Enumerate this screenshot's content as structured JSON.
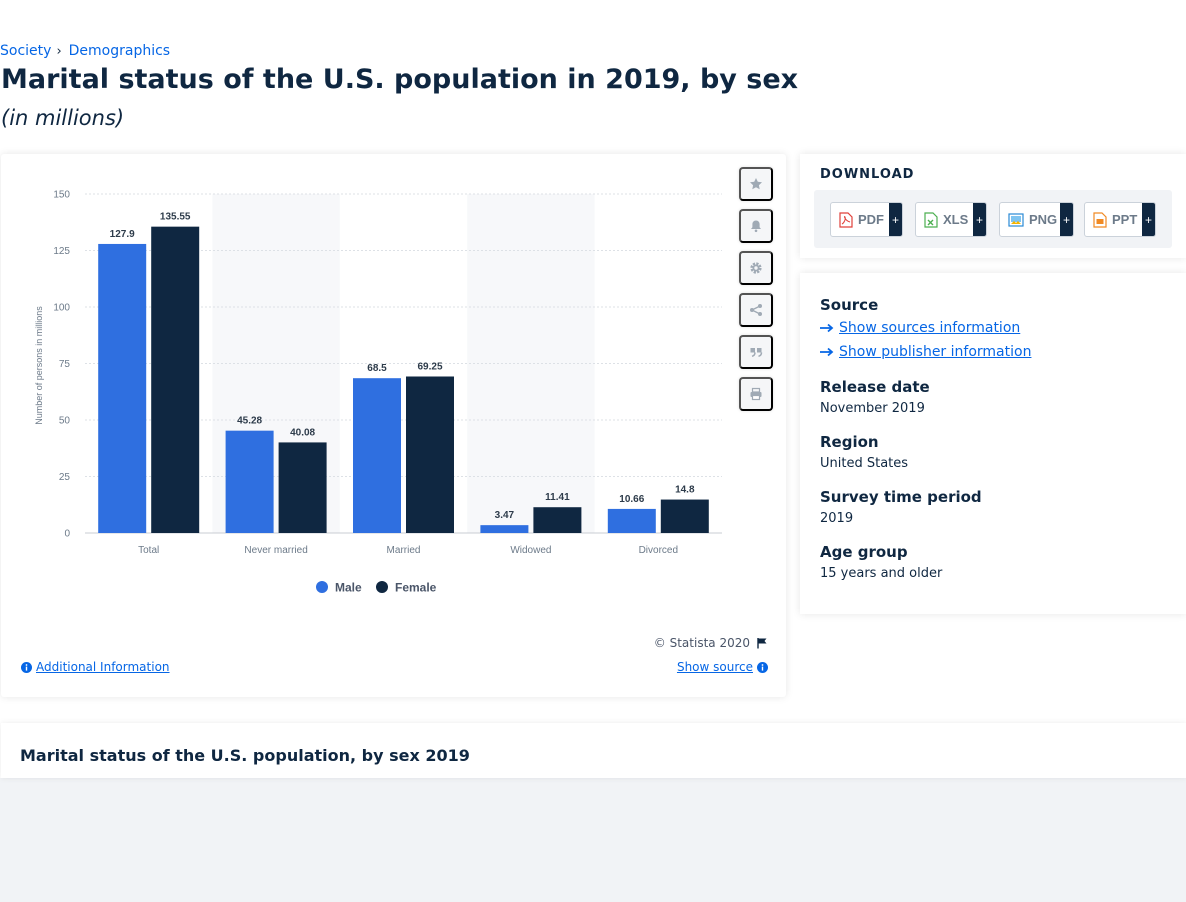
{
  "breadcrumb": {
    "items": [
      "Society",
      "Demographics"
    ],
    "separator": "›"
  },
  "page": {
    "title": "Marital status of the U.S. population in 2019, by sex",
    "subtitle": "(in millions)"
  },
  "chart_data": {
    "type": "bar",
    "categories": [
      "Total",
      "Never married",
      "Married",
      "Widowed",
      "Divorced"
    ],
    "series": [
      {
        "name": "Male",
        "color": "#2f6fe0",
        "values": [
          127.9,
          45.28,
          68.5,
          3.47,
          10.66
        ],
        "labels": [
          "127.9",
          "45.28",
          "68.5",
          "3.47",
          "10.66"
        ]
      },
      {
        "name": "Female",
        "color": "#0f2741",
        "values": [
          135.55,
          40.08,
          69.25,
          11.41,
          14.8
        ],
        "labels": [
          "135.55",
          "40.08",
          "69.25",
          "11.41",
          "14.8"
        ]
      }
    ],
    "ylabel": "Number of persons in millions",
    "xlabel": "",
    "ylim": [
      0,
      150
    ],
    "yticks": [
      0,
      25,
      50,
      75,
      100,
      125,
      150
    ],
    "grid": true,
    "legend": "bottom-center"
  },
  "chart_actions": [
    {
      "name": "favorite",
      "icon": "star-icon"
    },
    {
      "name": "notification",
      "icon": "bell-icon"
    },
    {
      "name": "settings",
      "icon": "gear-icon"
    },
    {
      "name": "share",
      "icon": "share-icon"
    },
    {
      "name": "cite",
      "icon": "quote-icon"
    },
    {
      "name": "print",
      "icon": "print-icon"
    }
  ],
  "chart_footer": {
    "copyright": "© Statista 2020",
    "additional_info": "Additional Information",
    "show_source": "Show source"
  },
  "download": {
    "title": "DOWNLOAD",
    "buttons": [
      {
        "label": "PDF",
        "icon": "pdf-file-icon",
        "color": "#e0413b"
      },
      {
        "label": "XLS",
        "icon": "xls-file-icon",
        "color": "#4caf50"
      },
      {
        "label": "PNG",
        "icon": "png-file-icon",
        "color": "#2a8ad6"
      },
      {
        "label": "PPT",
        "icon": "ppt-file-icon",
        "color": "#f08a24"
      }
    ],
    "plus": "+"
  },
  "info": {
    "source_label": "Source",
    "sources_link": "Show sources information",
    "publisher_link": "Show publisher information",
    "release_date_label": "Release date",
    "release_date": "November 2019",
    "region_label": "Region",
    "region": "United States",
    "survey_period_label": "Survey time period",
    "survey_period": "2019",
    "age_group_label": "Age group",
    "age_group": "15 years and older"
  },
  "related": {
    "title": "Marital status of the U.S. population, by sex 2019"
  }
}
